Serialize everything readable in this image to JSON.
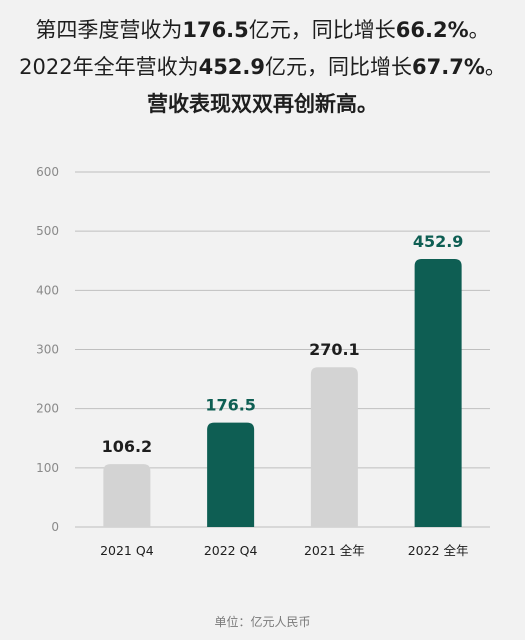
{
  "headline": {
    "line1": {
      "pre": "第四季度营收为",
      "value1": "176.5",
      "mid": "亿元，同比增长",
      "value2": "66.2%",
      "post": "。"
    },
    "line2": {
      "pre": "2022年全年营收为",
      "value1": "452.9",
      "mid": "亿元，同比增长",
      "value2": "67.7%",
      "post": "。"
    },
    "line3": "营收表现双双再创新高。"
  },
  "footnote": "单位：亿元人民币",
  "colors": {
    "highlight": "#0e5e53",
    "base": "#d3d3d3",
    "grid": "#bfbfbf",
    "axis_text": "#8a8a8a"
  },
  "chart_data": {
    "type": "bar",
    "categories": [
      "2021 Q4",
      "2022 Q4",
      "2021 全年",
      "2022 全年"
    ],
    "values": [
      106.2,
      176.5,
      270.1,
      452.9
    ],
    "data_labels": [
      "106.2",
      "176.5",
      "270.1",
      "452.9"
    ],
    "highlighted": [
      false,
      true,
      false,
      true
    ],
    "ylim": [
      0,
      600
    ],
    "yticks": [
      0,
      100,
      200,
      300,
      400,
      500,
      600
    ],
    "grid": true,
    "title": "",
    "xlabel": "",
    "ylabel": ""
  }
}
